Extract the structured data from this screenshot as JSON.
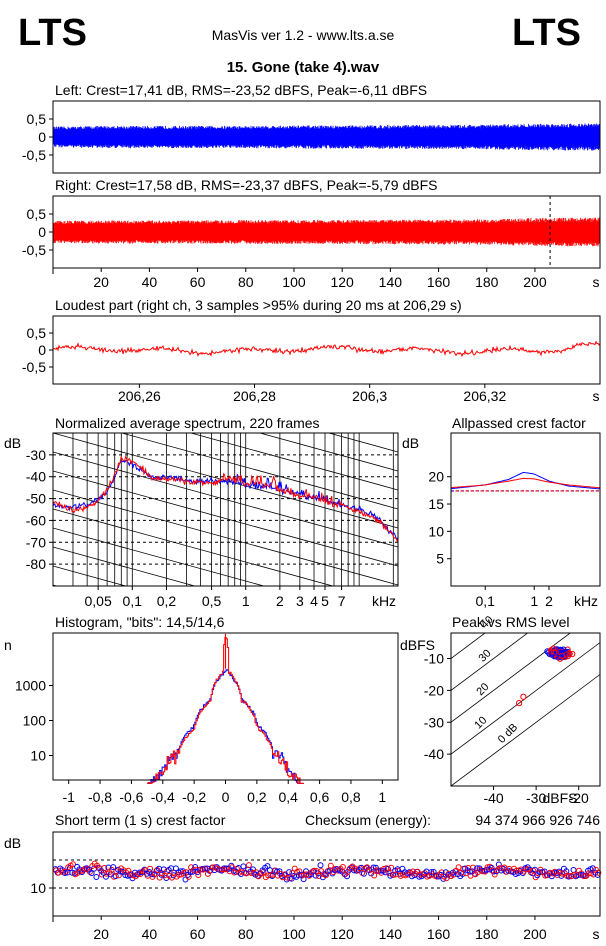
{
  "header": {
    "logo_left": "LTS",
    "logo_right": "LTS",
    "app_title": "MasVis ver 1.2 - www.lts.a.se",
    "track_title": "15. Gone (take 4).wav"
  },
  "chart_data": [
    {
      "id": "left-waveform",
      "type": "line",
      "title": "Left: Crest=17,41 dB, RMS=-23,52 dBFS, Peak=-6,11 dBFS",
      "color": "#0000ff",
      "ylim": [
        -1,
        1
      ],
      "y_ticks": [
        "0,5",
        "0",
        "-0,5"
      ],
      "y_tick_values": [
        0.5,
        0,
        -0.5
      ],
      "xlim": [
        0,
        227
      ],
      "envelope": {
        "x": [
          0,
          20,
          40,
          60,
          80,
          100,
          120,
          140,
          160,
          180,
          200,
          220,
          227
        ],
        "upper": [
          0.25,
          0.27,
          0.27,
          0.27,
          0.27,
          0.28,
          0.28,
          0.29,
          0.29,
          0.3,
          0.32,
          0.33,
          0.33
        ],
        "lower": [
          -0.25,
          -0.27,
          -0.27,
          -0.27,
          -0.27,
          -0.28,
          -0.28,
          -0.29,
          -0.29,
          -0.3,
          -0.32,
          -0.33,
          -0.33
        ]
      }
    },
    {
      "id": "right-waveform",
      "type": "line",
      "title": "Right: Crest=17,58 dB, RMS=-23,37 dBFS, Peak=-5,79 dBFS",
      "color": "#ff0000",
      "ylim": [
        -1,
        1
      ],
      "y_ticks": [
        "0,5",
        "0",
        "-0,5"
      ],
      "y_tick_values": [
        0.5,
        0,
        -0.5
      ],
      "xlim": [
        0,
        227
      ],
      "x_ticks": [
        "20",
        "40",
        "60",
        "80",
        "100",
        "120",
        "140",
        "160",
        "180",
        "200"
      ],
      "x_tick_values": [
        20,
        40,
        60,
        80,
        100,
        120,
        140,
        160,
        180,
        200
      ],
      "x_unit": "s",
      "marker_x": 206.29,
      "envelope": {
        "x": [
          0,
          20,
          40,
          60,
          80,
          100,
          120,
          140,
          160,
          180,
          200,
          220,
          227
        ],
        "upper": [
          0.27,
          0.28,
          0.28,
          0.28,
          0.29,
          0.29,
          0.29,
          0.3,
          0.3,
          0.31,
          0.34,
          0.35,
          0.35
        ],
        "lower": [
          -0.27,
          -0.28,
          -0.28,
          -0.28,
          -0.29,
          -0.29,
          -0.29,
          -0.3,
          -0.3,
          -0.31,
          -0.34,
          -0.35,
          -0.35
        ]
      }
    },
    {
      "id": "loudest-part",
      "type": "line",
      "title": "Loudest part (right ch, 3 samples >95% during 20 ms at 206,29 s)",
      "color": "#ff0000",
      "ylim": [
        -1,
        1
      ],
      "y_ticks": [
        "0,5",
        "0",
        "-0,5"
      ],
      "y_tick_values": [
        0.5,
        0,
        -0.5
      ],
      "xlim": [
        206.245,
        206.34
      ],
      "x_ticks": [
        "206,26",
        "206,28",
        "206,3",
        "206,32"
      ],
      "x_tick_values": [
        206.26,
        206.28,
        206.3,
        206.32
      ],
      "x_unit": "s"
    },
    {
      "id": "average-spectrum",
      "type": "line",
      "title": "Normalized average spectrum, 220 frames",
      "ylabel": "dB",
      "xlim_khz": [
        0.02,
        22
      ],
      "ylim": [
        -90,
        -20
      ],
      "y_ticks": [
        "-30",
        "-40",
        "-50",
        "-60",
        "-70",
        "-80"
      ],
      "y_tick_values": [
        -30,
        -40,
        -50,
        -60,
        -70,
        -80
      ],
      "x_ticks": [
        "0,05",
        "0,1",
        "0,2",
        "0,5",
        "1",
        "2",
        "3",
        "4",
        "5",
        "7"
      ],
      "x_tick_values": [
        0.05,
        0.1,
        0.2,
        0.5,
        1,
        2,
        3,
        4,
        5,
        7
      ],
      "x_unit": "kHz",
      "series": [
        {
          "color": "#0000ff",
          "x": [
            0.02,
            0.03,
            0.04,
            0.05,
            0.06,
            0.07,
            0.08,
            0.1,
            0.12,
            0.15,
            0.2,
            0.3,
            0.5,
            0.7,
            1,
            1.5,
            2,
            3,
            4,
            5,
            7,
            10,
            13,
            16,
            20,
            22
          ],
          "y": [
            -53,
            -54,
            -53,
            -50,
            -47,
            -40,
            -33,
            -34,
            -37,
            -40,
            -40,
            -42,
            -42,
            -42,
            -44,
            -45,
            -46,
            -48,
            -50,
            -51,
            -53,
            -55,
            -57,
            -61,
            -66,
            -69
          ]
        },
        {
          "color": "#ff0000",
          "x": [
            0.02,
            0.03,
            0.04,
            0.05,
            0.06,
            0.07,
            0.08,
            0.1,
            0.12,
            0.15,
            0.2,
            0.3,
            0.5,
            0.7,
            1,
            1.5,
            2,
            3,
            4,
            5,
            7,
            10,
            13,
            16,
            20,
            22
          ],
          "y": [
            -52,
            -55,
            -54,
            -51,
            -46,
            -39,
            -32,
            -33,
            -36,
            -41,
            -41,
            -42,
            -43,
            -41,
            -43,
            -44,
            -46,
            -49,
            -49,
            -52,
            -53,
            -56,
            -58,
            -62,
            -67,
            -70
          ]
        }
      ]
    },
    {
      "id": "allpassed-crest",
      "type": "line",
      "title": "Allpassed crest factor",
      "ylabel": "dB",
      "ylim": [
        0,
        28
      ],
      "y_ticks": [
        "20",
        "15",
        "10",
        "5"
      ],
      "y_tick_values": [
        20,
        15,
        10,
        5
      ],
      "x_ticks": [
        "0,1",
        "1",
        "2"
      ],
      "x_tick_values": [
        0.1,
        1,
        2
      ],
      "x_unit": "kHz",
      "reference_db": 17.4,
      "series": [
        {
          "color": "#0000ff",
          "x": [
            0.02,
            0.1,
            0.3,
            0.6,
            1,
            2,
            5,
            20
          ],
          "y": [
            17.8,
            18.5,
            19.5,
            20.8,
            20.5,
            19.2,
            18.3,
            17.8
          ]
        },
        {
          "color": "#ff0000",
          "x": [
            0.02,
            0.1,
            0.3,
            0.6,
            1,
            2,
            5,
            20
          ],
          "y": [
            18.0,
            18.5,
            19.2,
            19.7,
            19.6,
            19.0,
            18.5,
            18.0
          ]
        }
      ]
    },
    {
      "id": "histogram",
      "type": "line",
      "title": "Histogram, \"bits\": 14,5/14,6",
      "ylabel": "n",
      "y_ticks": [
        "1000",
        "100",
        "10"
      ],
      "y_tick_values": [
        1000,
        100,
        10
      ],
      "x_ticks": [
        "-1",
        "-0,8",
        "-0,6",
        "-0,4",
        "-0,2",
        "0",
        "0,2",
        "0,4",
        "0,6",
        "0,8",
        "1"
      ],
      "x_tick_values": [
        -1,
        -0.8,
        -0.6,
        -0.4,
        -0.2,
        0,
        0.2,
        0.4,
        0.6,
        0.8,
        1
      ],
      "series": [
        {
          "color": "#0000ff",
          "x": [
            -0.5,
            -0.45,
            -0.4,
            -0.3,
            -0.2,
            -0.1,
            -0.02,
            0,
            0.02,
            0.1,
            0.2,
            0.3,
            0.4,
            0.45,
            0.5
          ],
          "y": [
            1,
            2,
            4,
            15,
            70,
            400,
            2200,
            3000,
            2200,
            400,
            70,
            15,
            4,
            2,
            1
          ]
        },
        {
          "color": "#ff0000",
          "x": [
            -0.5,
            -0.45,
            -0.4,
            -0.3,
            -0.2,
            -0.1,
            -0.02,
            0,
            0.02,
            0.1,
            0.2,
            0.3,
            0.4,
            0.45,
            0.5
          ],
          "y": [
            1,
            2,
            3,
            12,
            60,
            380,
            2400,
            30000,
            2400,
            380,
            60,
            12,
            3,
            2,
            1
          ]
        }
      ]
    },
    {
      "id": "peak-vs-rms",
      "type": "scatter",
      "title": "Peak vs RMS level",
      "ylabel": "dBFS",
      "xlabel": "dBFS",
      "xlim": [
        -50,
        -15
      ],
      "ylim": [
        -50,
        -2
      ],
      "x_ticks": [
        "-40",
        "-30",
        "-20"
      ],
      "x_tick_values": [
        -40,
        -30,
        -20
      ],
      "y_ticks": [
        "-10",
        "-20",
        "-30",
        "-40"
      ],
      "y_tick_values": [
        -10,
        -20,
        -30,
        -40
      ],
      "crest_lines": [
        "40",
        "30",
        "20",
        "10",
        "0 dB"
      ],
      "crest_line_values": [
        40,
        30,
        20,
        10,
        0
      ],
      "cluster_center": [
        -24.5,
        -8.5
      ],
      "outliers": [
        [
          -33,
          -22
        ],
        [
          -34,
          -24
        ]
      ]
    },
    {
      "id": "short-term-crest",
      "type": "scatter",
      "title": "Short term (1 s) crest factor",
      "checksum_label": "Checksum (energy):",
      "checksum_value": "94 374 966 926 746",
      "ylabel": "dB",
      "ylim": [
        3,
        24
      ],
      "y_ticks": [
        "10"
      ],
      "y_tick_values": [
        10
      ],
      "reference_lines": [
        10,
        17
      ],
      "xlim": [
        0,
        227
      ],
      "x_ticks": [
        "20",
        "40",
        "60",
        "80",
        "100",
        "120",
        "140",
        "160",
        "180",
        "200"
      ],
      "x_tick_values": [
        20,
        40,
        60,
        80,
        100,
        120,
        140,
        160,
        180,
        200
      ],
      "x_unit": "s",
      "mean_db": 14,
      "spread_db": 2.2
    }
  ]
}
